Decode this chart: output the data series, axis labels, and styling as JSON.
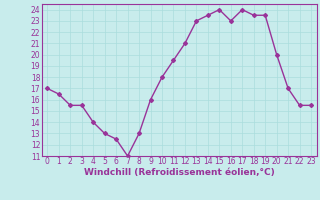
{
  "x": [
    0,
    1,
    2,
    3,
    4,
    5,
    6,
    7,
    8,
    9,
    10,
    11,
    12,
    13,
    14,
    15,
    16,
    17,
    18,
    19,
    20,
    21,
    22,
    23
  ],
  "y": [
    17.0,
    16.5,
    15.5,
    15.5,
    14.0,
    13.0,
    12.5,
    11.0,
    13.0,
    16.0,
    18.0,
    19.5,
    21.0,
    23.0,
    23.5,
    24.0,
    23.0,
    24.0,
    23.5,
    23.5,
    20.0,
    17.0,
    15.5,
    15.5
  ],
  "line_color": "#993399",
  "marker": "D",
  "marker_size": 2,
  "bg_color": "#c8ecec",
  "grid_color": "#aadddd",
  "xlabel": "Windchill (Refroidissement éolien,°C)",
  "xlabel_color": "#993399",
  "tick_color": "#993399",
  "ylim": [
    11,
    24.5
  ],
  "xlim": [
    -0.5,
    23.5
  ],
  "yticks": [
    11,
    12,
    13,
    14,
    15,
    16,
    17,
    18,
    19,
    20,
    21,
    22,
    23,
    24
  ],
  "xticks": [
    0,
    1,
    2,
    3,
    4,
    5,
    6,
    7,
    8,
    9,
    10,
    11,
    12,
    13,
    14,
    15,
    16,
    17,
    18,
    19,
    20,
    21,
    22,
    23
  ],
  "tick_fontsize": 5.5,
  "xlabel_fontsize": 6.5,
  "line_width": 1.0
}
